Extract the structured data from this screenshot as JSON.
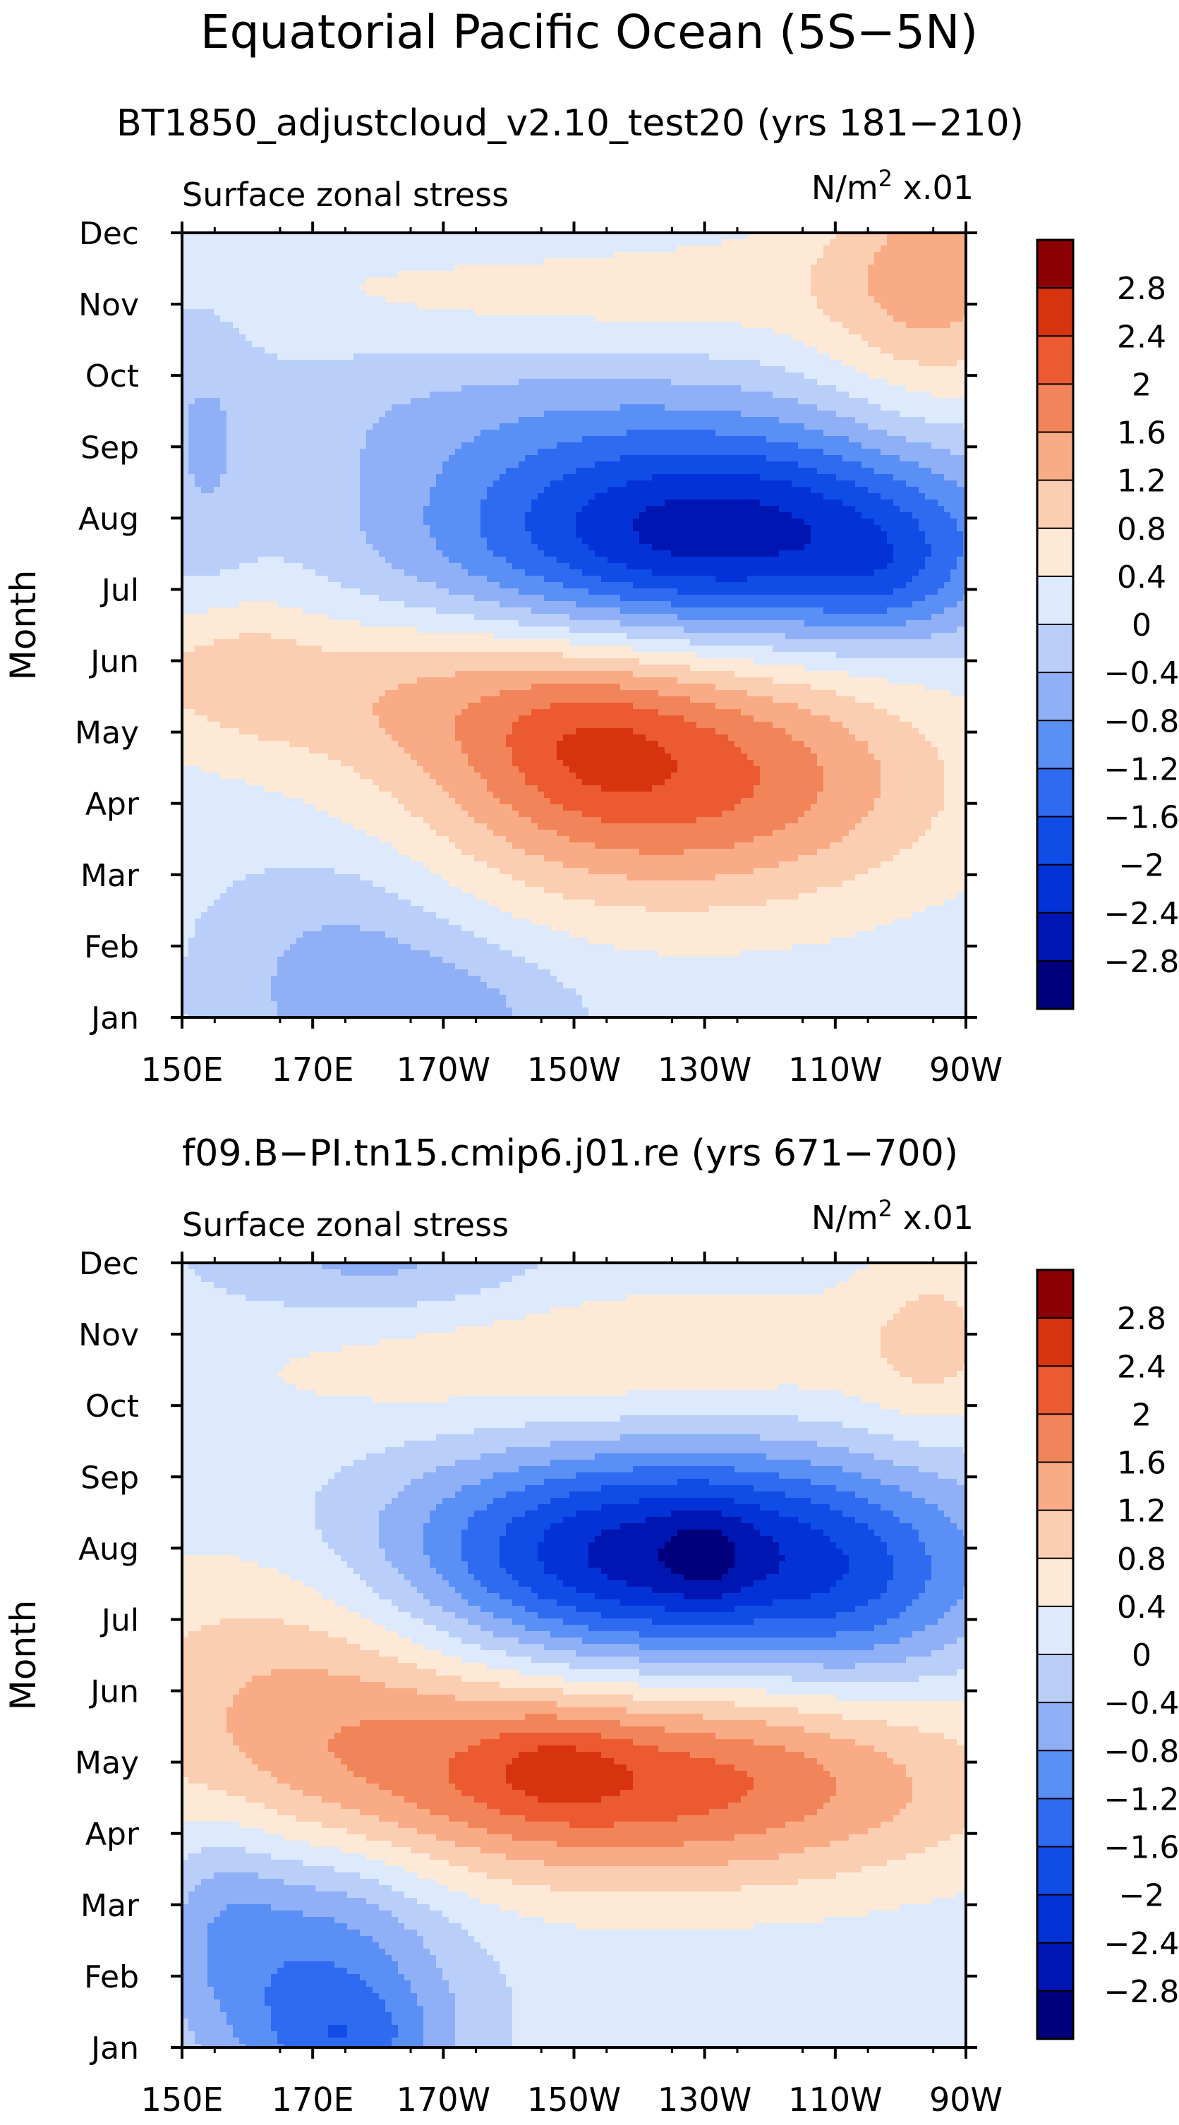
{
  "title": "Equatorial Pacific Ocean (5S−5N)",
  "chart_data": [
    {
      "type": "heatmap",
      "subtitle": "BT1850_adjustcloud_v2.10_test20 (yrs 181−210)",
      "left_label": "Surface zonal stress",
      "units_base": "N/m",
      "units_exp": "2",
      "units_scale": "x.01",
      "ylabel": "Month",
      "months": [
        "Jan",
        "Feb",
        "Mar",
        "Apr",
        "May",
        "Jun",
        "Jul",
        "Aug",
        "Sep",
        "Oct",
        "Nov",
        "Dec"
      ],
      "x_ticks": [
        "150E",
        "170E",
        "170W",
        "150W",
        "130W",
        "110W",
        "90W"
      ],
      "x_range_degE": [
        150,
        270
      ],
      "colorbar_labels": [
        "2.8",
        "2.4",
        "2",
        "1.6",
        "1.2",
        "0.8",
        "0.4",
        "0",
        "−0.4",
        "−0.8",
        "−1.2",
        "−1.6",
        "−2",
        "−2.4",
        "−2.8"
      ],
      "features": [
        {
          "lon": 175,
          "month": 0.5,
          "amp": -0.75,
          "slon": 14,
          "smon": 1.3
        },
        {
          "lon": 195,
          "month": 0.0,
          "amp": -0.5,
          "slon": 12,
          "smon": 0.7
        },
        {
          "lon": 225,
          "month": 3.3,
          "amp": 2.0,
          "slon": 28,
          "smon": 1.2
        },
        {
          "lon": 212,
          "month": 3.8,
          "amp": 0.4,
          "slon": 10,
          "smon": 0.7
        },
        {
          "lon": 190,
          "month": 4.6,
          "amp": 0.8,
          "slon": 30,
          "smon": 0.8
        },
        {
          "lon": 155,
          "month": 5.0,
          "amp": 0.6,
          "slon": 10,
          "smon": 0.8
        },
        {
          "lon": 232,
          "month": 6.8,
          "amp": -2.8,
          "slon": 30,
          "smon": 1.05
        },
        {
          "lon": 258,
          "month": 6.1,
          "amp": -0.5,
          "slon": 8,
          "smon": 0.6
        },
        {
          "lon": 198,
          "month": 8.6,
          "amp": -0.45,
          "slon": 30,
          "smon": 0.8
        },
        {
          "lon": 153,
          "month": 7.8,
          "amp": -0.45,
          "slon": 6,
          "smon": 2.0
        },
        {
          "lon": 215,
          "month": 10.2,
          "amp": 0.5,
          "slon": 40,
          "smon": 0.7
        },
        {
          "lon": 265,
          "month": 10.5,
          "amp": 1.1,
          "slon": 12,
          "smon": 1.5
        },
        {
          "lon": 200,
          "month": 11.2,
          "amp": -0.3,
          "slon": 20,
          "smon": 0.5
        }
      ],
      "bias": 0.15
    },
    {
      "type": "heatmap",
      "subtitle": "f09.B−PI.tn15.cmip6.j01.re (yrs 671−700)",
      "left_label": "Surface zonal stress",
      "units_base": "N/m",
      "units_exp": "2",
      "units_scale": "x.01",
      "ylabel": "Month",
      "months": [
        "Jan",
        "Feb",
        "Mar",
        "Apr",
        "May",
        "Jun",
        "Jul",
        "Aug",
        "Sep",
        "Oct",
        "Nov",
        "Dec"
      ],
      "x_ticks": [
        "150E",
        "170E",
        "170W",
        "150W",
        "130W",
        "110W",
        "90W"
      ],
      "x_range_degE": [
        150,
        270
      ],
      "colorbar_labels": [
        "2.8",
        "2.4",
        "2",
        "1.6",
        "1.2",
        "0.8",
        "0.4",
        "0",
        "−0.4",
        "−0.8",
        "−1.2",
        "−1.6",
        "−2",
        "−2.4",
        "−2.8"
      ],
      "features": [
        {
          "lon": 170,
          "month": 1.2,
          "amp": -1.3,
          "slon": 15,
          "smon": 1.3
        },
        {
          "lon": 176,
          "month": 0.0,
          "amp": -0.9,
          "slon": 10,
          "smon": 0.6
        },
        {
          "lon": 156,
          "month": 2.0,
          "amp": -0.4,
          "slon": 6,
          "smon": 1.0
        },
        {
          "lon": 220,
          "month": 3.7,
          "amp": 2.1,
          "slon": 36,
          "smon": 1.0
        },
        {
          "lon": 207,
          "month": 4.0,
          "amp": 0.5,
          "slon": 8,
          "smon": 0.5
        },
        {
          "lon": 168,
          "month": 5.2,
          "amp": 1.0,
          "slon": 22,
          "smon": 1.5
        },
        {
          "lon": 225,
          "month": 6.9,
          "amp": -2.9,
          "slon": 30,
          "smon": 1.05
        },
        {
          "lon": 230,
          "month": 6.9,
          "amp": -0.4,
          "slon": 4,
          "smon": 0.5
        },
        {
          "lon": 255,
          "month": 6.0,
          "amp": -0.4,
          "slon": 10,
          "smon": 0.8
        },
        {
          "lon": 215,
          "month": 9.6,
          "amp": 0.6,
          "slon": 40,
          "smon": 0.8
        },
        {
          "lon": 265,
          "month": 10.0,
          "amp": 0.6,
          "slon": 8,
          "smon": 1.0
        },
        {
          "lon": 180,
          "month": 11.0,
          "amp": -0.7,
          "slon": 18,
          "smon": 0.6
        }
      ],
      "bias": 0.15
    }
  ]
}
